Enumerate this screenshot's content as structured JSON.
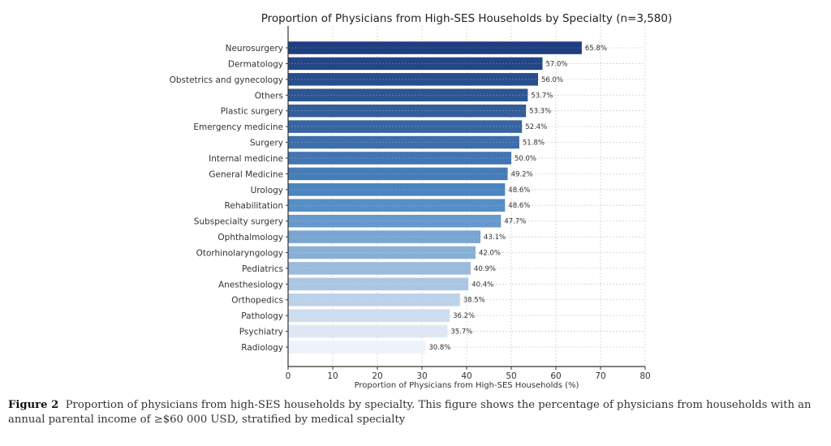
{
  "chart_data": {
    "type": "bar",
    "orientation": "horizontal",
    "title": "Proportion of Physicians from High-SES Households by Specialty (n=3,580)",
    "xlabel": "Proportion of Physicians from High-SES Households (%)",
    "ylabel": "",
    "xlim": [
      0,
      80
    ],
    "xticks": [
      "0",
      "10",
      "20",
      "30",
      "40",
      "50",
      "60",
      "70",
      "80"
    ],
    "grid": true,
    "categories": [
      "Neurosurgery",
      "Dermatology",
      "Obstetrics and gynecology",
      "Others",
      "Plastic surgery",
      "Emergency medicine",
      "Surgery",
      "Internal medicine",
      "General Medicine",
      "Urology",
      "Rehabilitation",
      "Subspecialty surgery",
      "Ophthalmology",
      "Otorhinolaryngology",
      "Pediatrics",
      "Anesthesiology",
      "Orthopedics",
      "Pathology",
      "Psychiatry",
      "Radiology"
    ],
    "values": [
      65.8,
      57.0,
      56.0,
      53.7,
      53.3,
      52.4,
      51.8,
      50.0,
      49.2,
      48.6,
      48.6,
      47.7,
      43.1,
      42.0,
      40.9,
      40.4,
      38.5,
      36.2,
      35.7,
      30.8
    ],
    "data_labels": [
      "65.8%",
      "57.0%",
      "56.0%",
      "53.7%",
      "53.3%",
      "52.4%",
      "51.8%",
      "50.0%",
      "49.2%",
      "48.6%",
      "48.6%",
      "47.7%",
      "43.1%",
      "42.0%",
      "40.9%",
      "40.4%",
      "38.5%",
      "36.2%",
      "35.7%",
      "30.8%"
    ],
    "colormap": {
      "dark": "#1b3a7c",
      "mid": "#4a86c1",
      "light": "#eef3fb"
    }
  },
  "caption": {
    "label": "Figure 2",
    "text": "Proportion of physicians from high-SES households by specialty. This figure shows the percentage of physicians from households with an annual parental income of ≥$60 000 USD, stratified by medical specialty"
  }
}
